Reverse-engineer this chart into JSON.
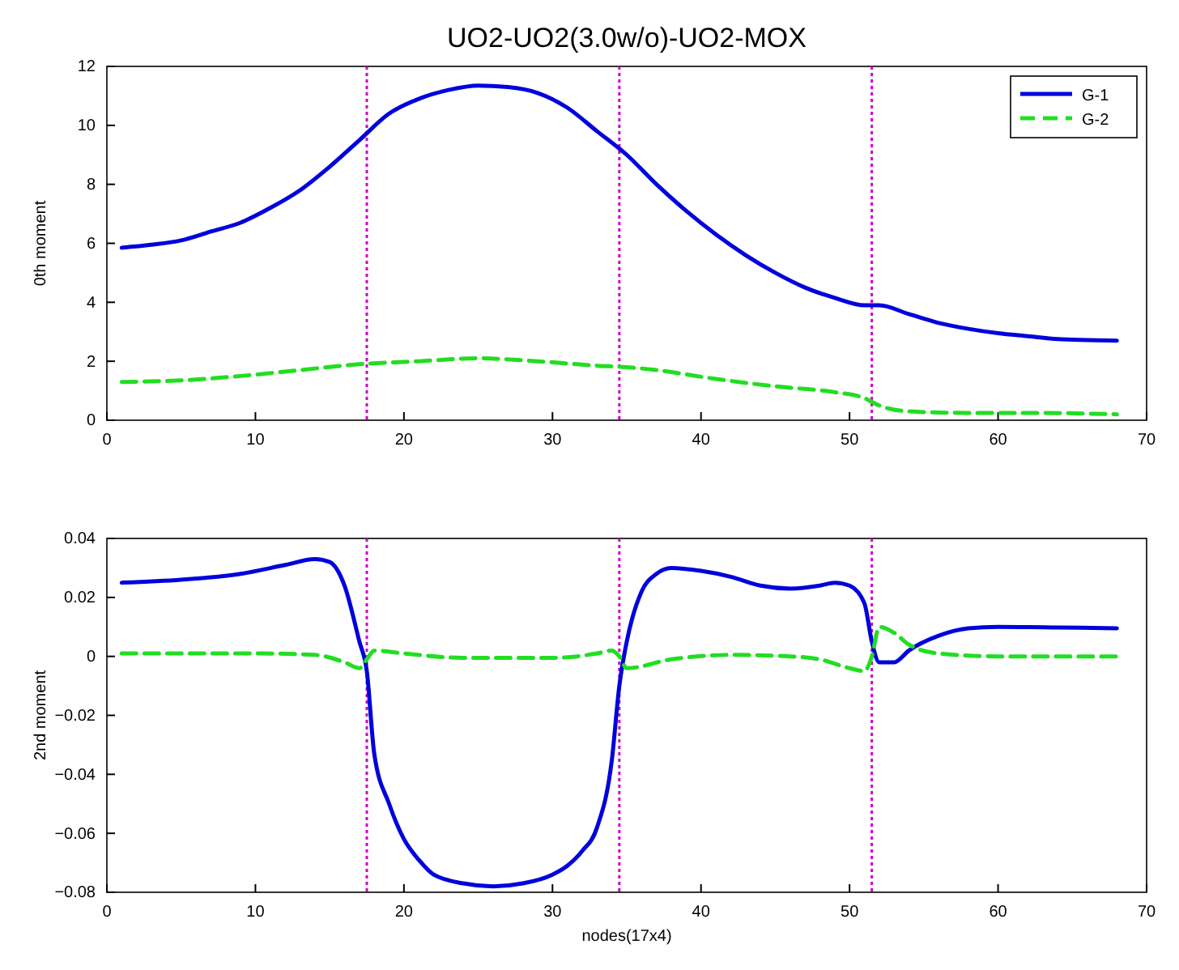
{
  "chart_data": [
    {
      "type": "line",
      "title": "UO2-UO2(3.0w/o)-UO2-MOX",
      "ylabel": "0th moment",
      "xlim": [
        0,
        70
      ],
      "xticks": [
        0,
        10,
        20,
        30,
        40,
        50,
        60,
        70
      ],
      "ylim": [
        0,
        12
      ],
      "yticks": [
        0,
        2,
        4,
        6,
        8,
        10,
        12
      ],
      "grid": false,
      "legend": "top right",
      "marker": "none",
      "series": [
        {
          "name": "G-1",
          "color": "#0000dd",
          "line_style": "solid",
          "x": [
            1,
            3,
            5,
            7,
            9,
            11,
            13,
            15,
            17,
            19,
            21,
            23,
            25,
            27,
            29,
            31,
            33,
            35,
            37,
            39,
            41,
            43,
            45,
            47,
            49,
            51,
            52,
            54,
            56,
            58,
            60,
            62,
            64,
            66,
            68
          ],
          "values": [
            5.85,
            5.95,
            6.1,
            6.4,
            6.7,
            7.2,
            7.8,
            8.6,
            9.5,
            10.4,
            10.9,
            11.2,
            11.35,
            11.3,
            11.1,
            10.6,
            9.8,
            9.0,
            8.0,
            7.1,
            6.3,
            5.6,
            5.0,
            4.5,
            4.15,
            3.9,
            3.9,
            3.6,
            3.3,
            3.1,
            2.95,
            2.85,
            2.75,
            2.72,
            2.7
          ]
        },
        {
          "name": "G-2",
          "color": "#22dd22",
          "line_style": "dashed",
          "x": [
            1,
            5,
            9,
            13,
            17,
            21,
            25,
            29,
            33,
            35,
            37,
            41,
            45,
            49,
            51,
            52,
            54,
            58,
            62,
            68
          ],
          "values": [
            1.3,
            1.35,
            1.5,
            1.7,
            1.9,
            2.0,
            2.1,
            2.0,
            1.85,
            1.8,
            1.7,
            1.4,
            1.15,
            0.95,
            0.75,
            0.5,
            0.3,
            0.25,
            0.25,
            0.2
          ]
        }
      ],
      "ref_lines": [
        {
          "axis": "x",
          "value": 17.5,
          "color": "#cc00cc",
          "line_style": "dotted"
        },
        {
          "axis": "x",
          "value": 34.5,
          "color": "#cc00cc",
          "line_style": "dotted"
        },
        {
          "axis": "x",
          "value": 51.5,
          "color": "#cc00cc",
          "line_style": "dotted"
        }
      ]
    },
    {
      "type": "line",
      "xlabel": "nodes(17x4)",
      "ylabel": "2nd moment",
      "xlim": [
        0,
        70
      ],
      "xticks": [
        0,
        10,
        20,
        30,
        40,
        50,
        60,
        70
      ],
      "ylim": [
        -0.08,
        0.04
      ],
      "yticks": [
        -0.08,
        -0.06,
        -0.04,
        -0.02,
        0,
        0.02,
        0.04
      ],
      "grid": false,
      "legend": false,
      "marker": "none",
      "series": [
        {
          "color": "#0000dd",
          "line_style": "solid",
          "x": [
            1,
            5,
            9,
            12,
            14,
            15,
            16,
            17,
            17.5,
            18,
            19,
            20,
            21,
            22,
            24,
            26,
            28,
            30,
            31,
            32,
            33,
            34,
            34.5,
            35,
            36,
            37,
            38,
            40,
            42,
            44,
            46,
            48,
            49,
            50,
            51,
            51.5,
            52,
            53,
            54,
            56,
            58,
            60,
            64,
            68
          ],
          "values": [
            0.025,
            0.026,
            0.028,
            0.031,
            0.033,
            0.032,
            0.024,
            0.005,
            -0.005,
            -0.033,
            -0.05,
            -0.062,
            -0.069,
            -0.074,
            -0.077,
            -0.078,
            -0.077,
            -0.074,
            -0.071,
            -0.066,
            -0.058,
            -0.035,
            -0.01,
            0.005,
            0.022,
            0.028,
            0.03,
            0.029,
            0.027,
            0.024,
            0.023,
            0.024,
            0.025,
            0.024,
            0.018,
            0.005,
            -0.002,
            -0.002,
            0.002,
            0.007,
            0.0095,
            0.01,
            0.0098,
            0.0095
          ]
        },
        {
          "color": "#22dd22",
          "line_style": "dashed",
          "x": [
            1,
            10,
            14,
            16,
            17,
            17.5,
            18,
            20,
            24,
            30,
            33,
            34,
            34.5,
            35,
            38,
            42,
            46,
            48,
            50,
            51,
            51.5,
            52,
            53,
            54,
            56,
            60,
            68
          ],
          "values": [
            0.001,
            0.001,
            0.0005,
            -0.002,
            -0.004,
            -0.001,
            0.002,
            0.001,
            -0.0005,
            -0.0005,
            0.001,
            0.002,
            0.0,
            -0.004,
            -0.001,
            0.0005,
            0.0,
            -0.001,
            -0.004,
            -0.005,
            0.0,
            0.01,
            0.008,
            0.004,
            0.001,
            0.0,
            0.0
          ]
        }
      ],
      "ref_lines": [
        {
          "axis": "x",
          "value": 17.5,
          "color": "#cc00cc",
          "line_style": "dotted"
        },
        {
          "axis": "x",
          "value": 34.5,
          "color": "#cc00cc",
          "line_style": "dotted"
        },
        {
          "axis": "x",
          "value": 51.5,
          "color": "#cc00cc",
          "line_style": "dotted"
        }
      ]
    }
  ]
}
